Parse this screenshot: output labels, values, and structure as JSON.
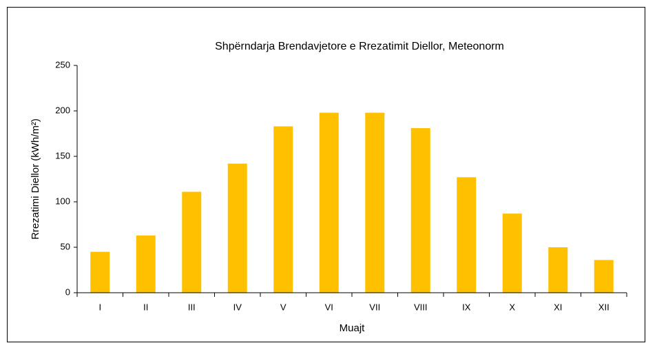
{
  "chart_data": {
    "type": "bar",
    "title": "Shpërndarja Brendavjetore e Rrezatimit Diellor, Meteonorm",
    "x_label": "Muajt",
    "y_label": "Rrezatimi Diellor (kWh/m²)",
    "categories": [
      "I",
      "II",
      "III",
      "IV",
      "V",
      "VI",
      "VII",
      "VIII",
      "IX",
      "X",
      "XI",
      "XII"
    ],
    "values": [
      45,
      63,
      111,
      142,
      183,
      198,
      198,
      181,
      127,
      87,
      50,
      36
    ],
    "color": "#ffc000",
    "ylim": [
      0,
      250
    ],
    "yticks": [
      0,
      50,
      100,
      150,
      200,
      250
    ],
    "grid": false
  }
}
